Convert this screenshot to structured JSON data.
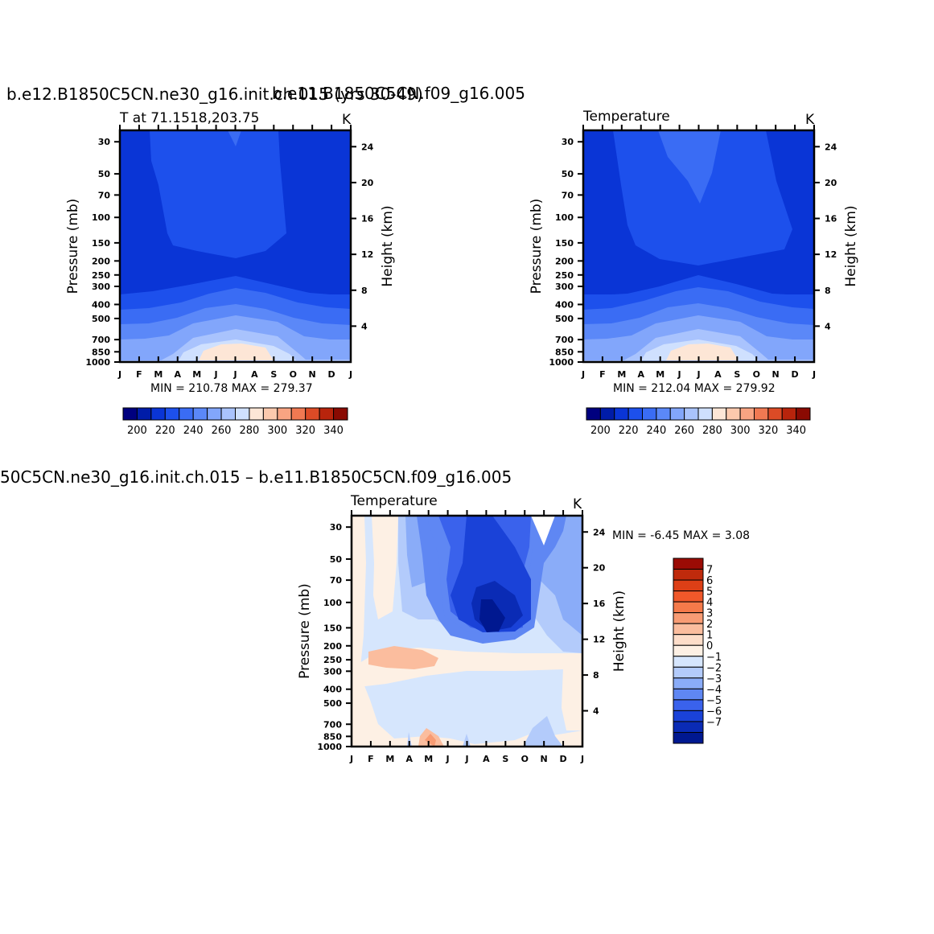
{
  "page": {
    "titles": {
      "top_left": "b.e12.B1850C5CN.ne30_g16.init.ch.015 (yrs 30-49)",
      "top_left_overlap": "b.e11.B1850C5CN.f09_g16.005",
      "bottom": "50C5CN.ne30_g16.init.ch.015 – b.e11.B1850C5CN.f09_g16.005"
    }
  },
  "chart_data": [
    {
      "type": "heatmap",
      "title": "b.e12.B1850C5CN.ne30_g16.init.ch.015 (yrs 30-49)",
      "subtitle_left": "T at 71.1518,203.75",
      "subtitle_right": "K",
      "ylabel": "Pressure (mb)",
      "y2label": "Height (km)",
      "x_ticks": [
        "J",
        "F",
        "M",
        "A",
        "M",
        "J",
        "J",
        "A",
        "S",
        "O",
        "N",
        "D",
        "J"
      ],
      "y_ticks": [
        30,
        50,
        70,
        100,
        150,
        200,
        250,
        300,
        400,
        500,
        700,
        850,
        1000
      ],
      "y_scale": "log",
      "ylim": [
        1000,
        25
      ],
      "y2_ticks": [
        4,
        8,
        12,
        16,
        20,
        24
      ],
      "min": 210.78,
      "max": 279.37,
      "minmax_text": "MIN = 210.78  MAX = 279.37",
      "colorbar": {
        "orientation": "horizontal",
        "levels": [
          200,
          210,
          220,
          230,
          240,
          250,
          260,
          270,
          280,
          290,
          300,
          310,
          320,
          330,
          340
        ],
        "tick_labels": [
          "200",
          "220",
          "240",
          "260",
          "280",
          "300",
          "320",
          "340"
        ],
        "colors": [
          "#00007f",
          "#001ca8",
          "#0a35d6",
          "#1d50ec",
          "#3a6cf4",
          "#5b88f8",
          "#82a6fb",
          "#a9c3fd",
          "#cfe0fe",
          "#fde6d6",
          "#fcc9ad",
          "#f8a482",
          "#f07952",
          "#dc4b26",
          "#b8240c",
          "#8a0a02"
        ]
      },
      "field_summary": "cold stratosphere ~210-220 K above 250 mb with a slightly warmer core (~220 K) between Feb and Sep above 150 mb; warm near-surface air ~270-280 K peaking in July"
    },
    {
      "type": "heatmap",
      "title": "b.e11.B1850C5CN.f09_g16.005",
      "subtitle_left": "Temperature",
      "subtitle_right": "K",
      "ylabel": "Pressure (mb)",
      "y2label": "Height (km)",
      "x_ticks": [
        "J",
        "F",
        "M",
        "A",
        "M",
        "J",
        "J",
        "A",
        "S",
        "O",
        "N",
        "D",
        "J"
      ],
      "y_ticks": [
        30,
        50,
        70,
        100,
        150,
        200,
        250,
        300,
        400,
        500,
        700,
        850,
        1000
      ],
      "y_scale": "log",
      "ylim": [
        1000,
        25
      ],
      "y2_ticks": [
        4,
        8,
        12,
        16,
        20,
        24
      ],
      "min": 212.04,
      "max": 279.92,
      "minmax_text": "MIN = 212.04  MAX = 279.92",
      "colorbar": {
        "orientation": "horizontal",
        "levels": [
          200,
          210,
          220,
          230,
          240,
          250,
          260,
          270,
          280,
          290,
          300,
          310,
          320,
          330,
          340
        ],
        "tick_labels": [
          "200",
          "220",
          "240",
          "260",
          "280",
          "300",
          "320",
          "340"
        ],
        "colors": [
          "#00007f",
          "#001ca8",
          "#0a35d6",
          "#1d50ec",
          "#3a6cf4",
          "#5b88f8",
          "#82a6fb",
          "#a9c3fd",
          "#cfe0fe",
          "#fde6d6",
          "#fcc9ad",
          "#f8a482",
          "#f07952",
          "#dc4b26",
          "#b8240c",
          "#8a0a02"
        ]
      }
    },
    {
      "type": "heatmap",
      "title": "50C5CN.ne30_g16.init.ch.015 – b.e11.B1850C5CN.f09_g16.005",
      "subtitle_left": "Temperature",
      "subtitle_right": "K",
      "ylabel": "Pressure (mb)",
      "y2label": "Height (km)",
      "x_ticks": [
        "J",
        "F",
        "M",
        "A",
        "M",
        "J",
        "J",
        "A",
        "S",
        "O",
        "N",
        "D",
        "J"
      ],
      "y_ticks": [
        30,
        50,
        70,
        100,
        150,
        200,
        250,
        300,
        400,
        500,
        700,
        850,
        1000
      ],
      "y_scale": "log",
      "ylim": [
        1000,
        25
      ],
      "y2_ticks": [
        4,
        8,
        12,
        16,
        20,
        24
      ],
      "min": -6.45,
      "max": 3.08,
      "minmax_text": "MIN =   -6.45  MAX =     3.08",
      "colorbar": {
        "orientation": "vertical",
        "tick_labels": [
          "7",
          "6",
          "5",
          "4",
          "3",
          "2",
          "1",
          "0",
          "−1",
          "−2",
          "−3",
          "−4",
          "−5",
          "−6",
          "−7"
        ],
        "colors": [
          "#9b0b05",
          "#bf2a0c",
          "#dd3f16",
          "#f0582a",
          "#f57a4a",
          "#f89c74",
          "#fbbd9e",
          "#fdddc9",
          "#fdf0e4",
          "#d6e6fd",
          "#b3cbfb",
          "#8aacf8",
          "#5f87f3",
          "#3a62ec",
          "#1a42d8",
          "#0a2bb5",
          "#001890"
        ]
      },
      "field_summary": "difference field: strong cold anomaly (down to ~-6.45 K) centered near Aug at 100-150 mb; weak warm anomalies (~1-3 K) near 200-250 mb in Feb-Apr and near surface in May"
    }
  ]
}
